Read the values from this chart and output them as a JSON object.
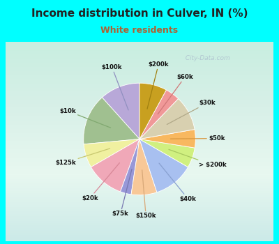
{
  "title": "Income distribution in Culver, IN (%)",
  "subtitle": "White residents",
  "background_color": "#00FFFF",
  "chart_bg_top": "#d0f0f0",
  "chart_bg_bottom": "#d8eedd",
  "slices": [
    {
      "label": "$100k",
      "value": 11.0,
      "color": "#b8a8d8",
      "label_color": "#9090c0"
    },
    {
      "label": "$10k",
      "value": 14.0,
      "color": "#a0c090",
      "label_color": "#80a870"
    },
    {
      "label": "$125k",
      "value": 6.5,
      "color": "#f0f0a0",
      "label_color": "#c8c870"
    },
    {
      "label": "$20k",
      "value": 10.5,
      "color": "#f0a8b8",
      "label_color": "#d88898"
    },
    {
      "label": "$75k",
      "value": 3.0,
      "color": "#9898d8",
      "label_color": "#7878b0"
    },
    {
      "label": "$150k",
      "value": 7.0,
      "color": "#f8c898",
      "label_color": "#d8a878"
    },
    {
      "label": "$40k",
      "value": 11.0,
      "color": "#a8c0f0",
      "label_color": "#88a0d0"
    },
    {
      "label": "> $200k",
      "value": 5.5,
      "color": "#d0f080",
      "label_color": "#a8c860"
    },
    {
      "label": "$50k",
      "value": 5.0,
      "color": "#f8b860",
      "label_color": "#d89840"
    },
    {
      "label": "$30k",
      "value": 9.5,
      "color": "#d8d0b0",
      "label_color": "#b0a888"
    },
    {
      "label": "$60k",
      "value": 4.0,
      "color": "#f09898",
      "label_color": "#d07878"
    },
    {
      "label": "$200k",
      "value": 7.5,
      "color": "#c8a020",
      "label_color": "#a08010"
    }
  ],
  "startangle": 90,
  "watermark": "  City-Data.com"
}
